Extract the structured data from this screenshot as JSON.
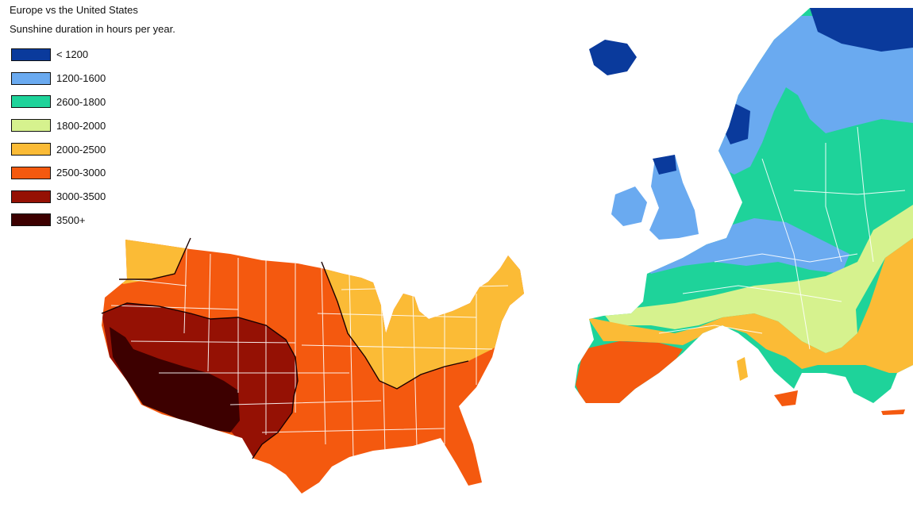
{
  "title": "Europe vs the United States",
  "subtitle": "Sunshine duration in hours per year.",
  "legend": [
    {
      "label": "< 1200",
      "color": "#0a3a9c"
    },
    {
      "label": "1200-1600",
      "color": "#6aaaf0"
    },
    {
      "label": "2600-1800",
      "color": "#1ed39a"
    },
    {
      "label": "1800-2000",
      "color": "#d6f28e"
    },
    {
      "label": "2000-2500",
      "color": "#fbbb36"
    },
    {
      "label": "2500-3000",
      "color": "#f4590f"
    },
    {
      "label": "3000-3500",
      "color": "#951104"
    },
    {
      "label": "3500+",
      "color": "#3d0000"
    }
  ]
}
